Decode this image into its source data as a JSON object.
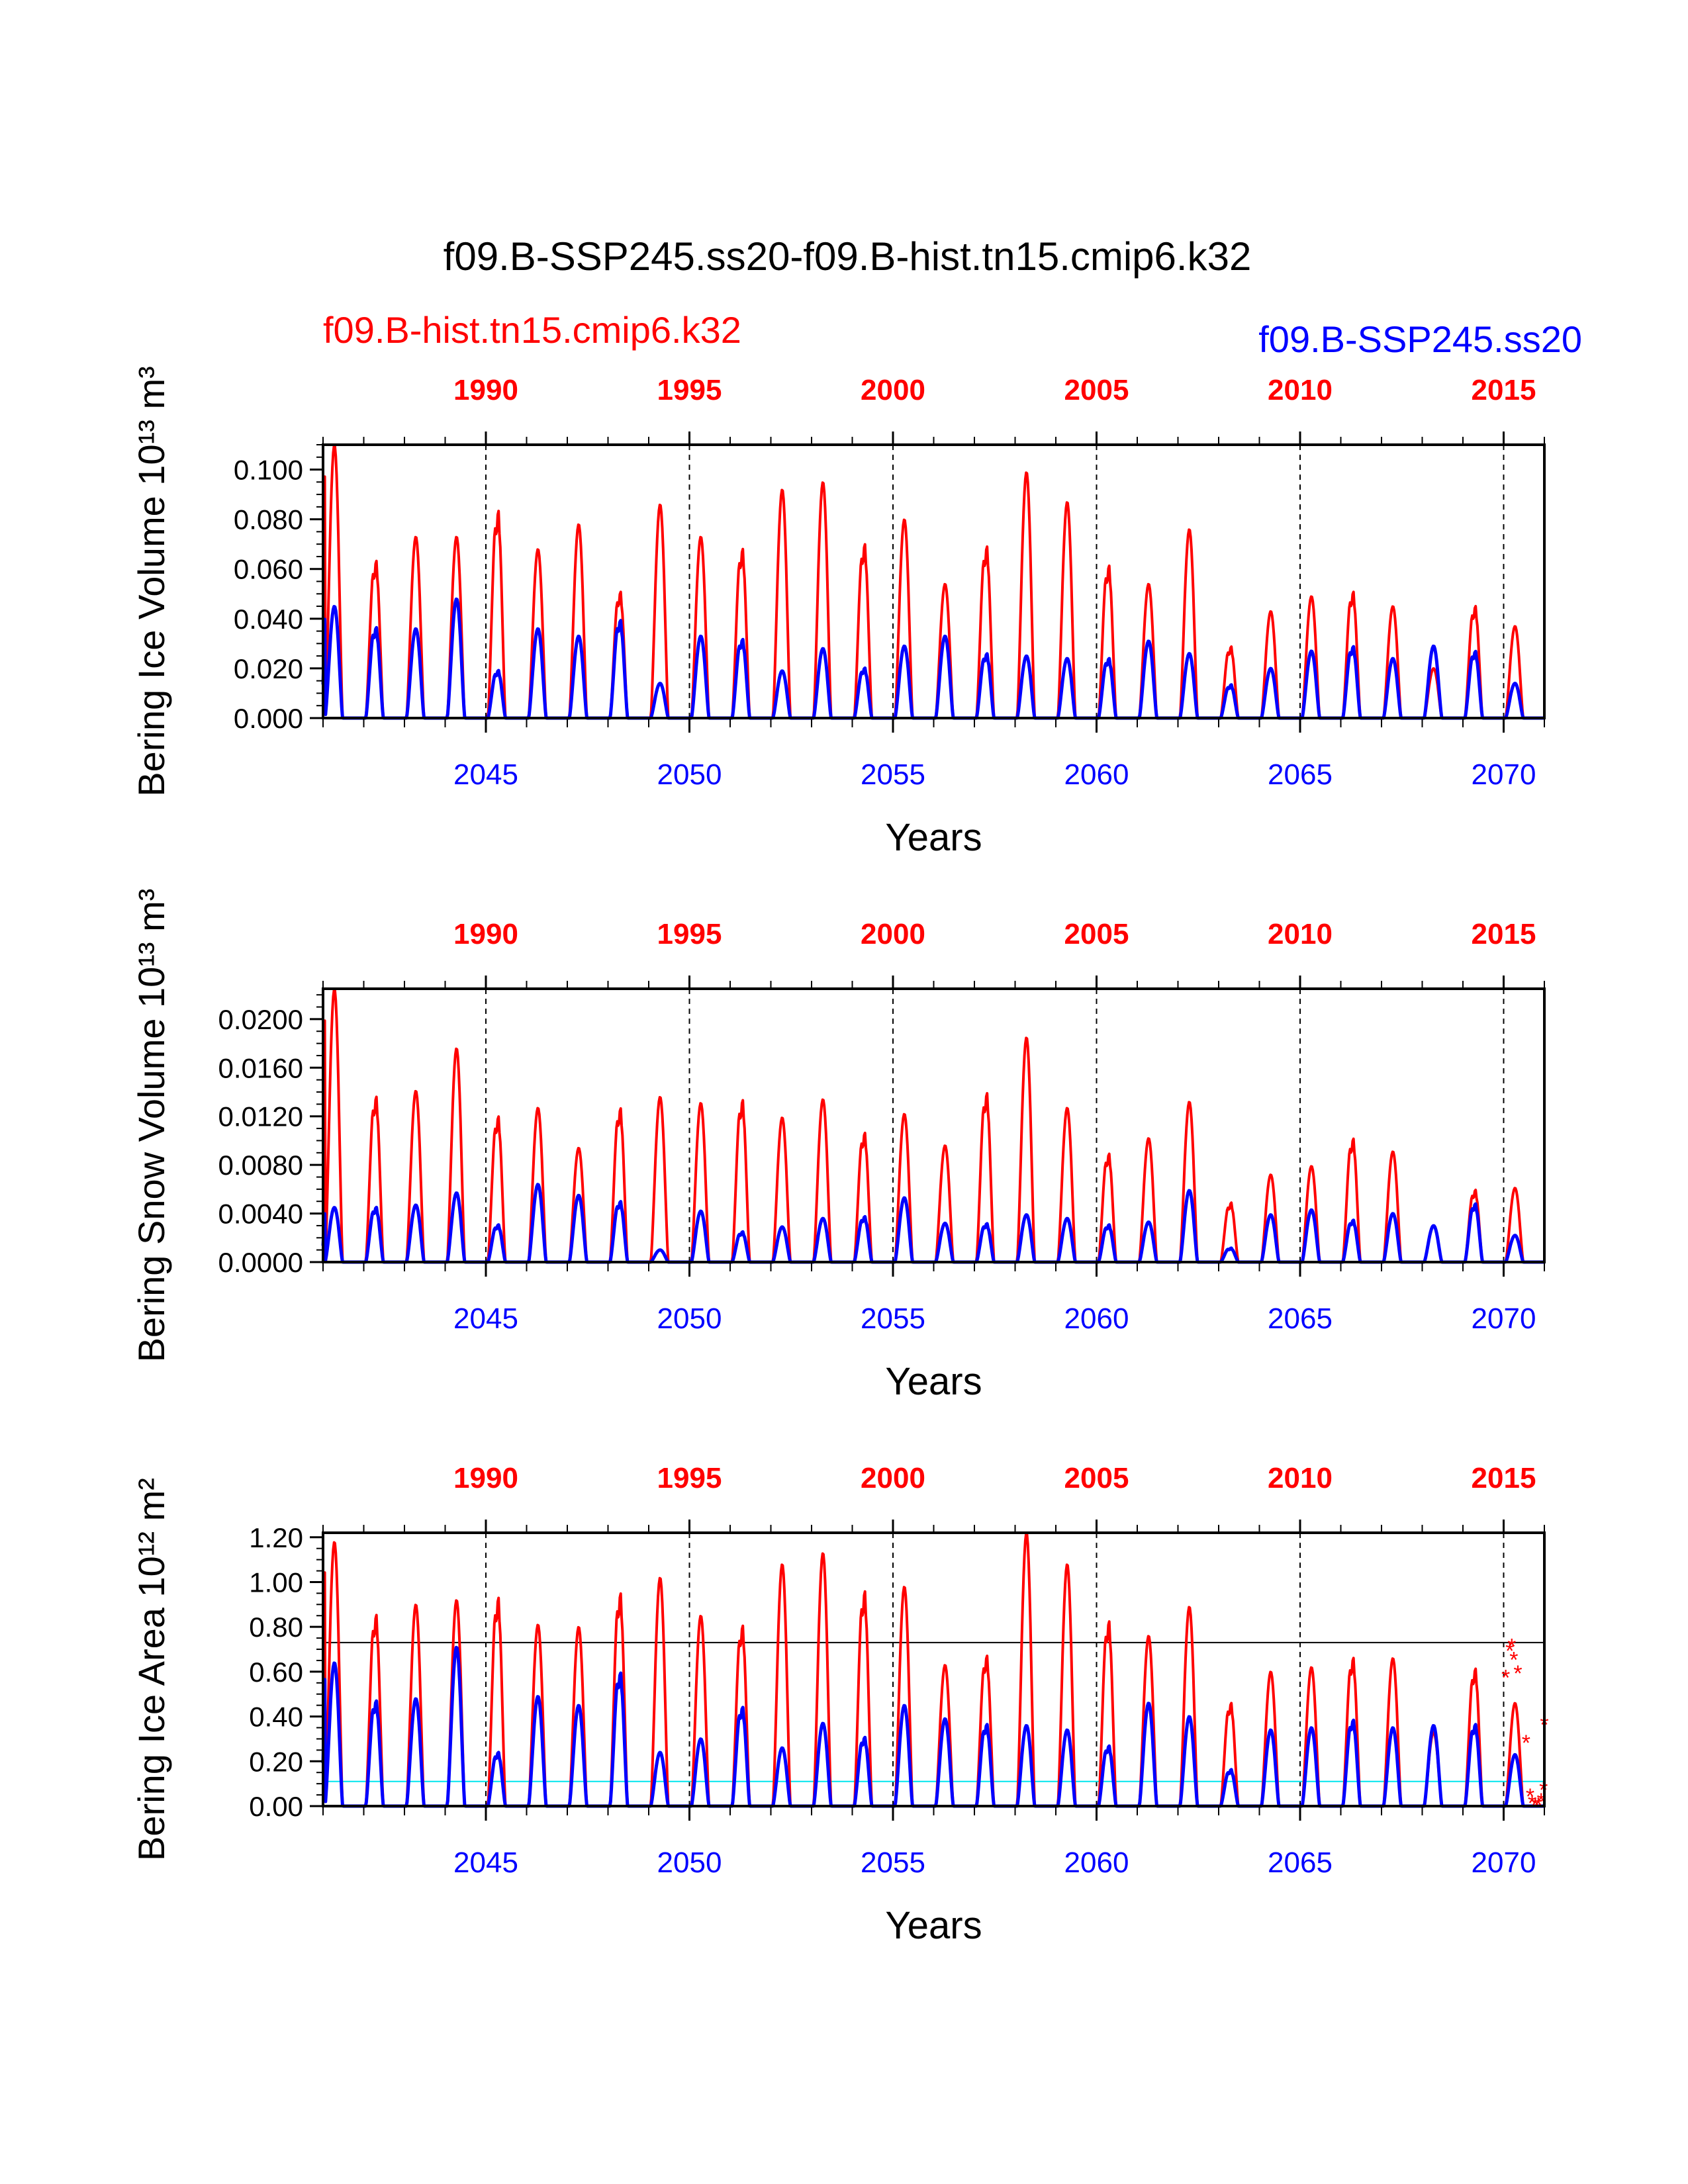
{
  "page": {
    "title": "f09.B-SSP245.ss20-f09.B-hist.tn15.cmip6.k32",
    "legend_left": "f09.B-hist.tn15.cmip6.k32",
    "legend_right": "f09.B-SSP245.ss20",
    "colors": {
      "hist": "#ff0000",
      "ssp": "#0000ff",
      "axis": "#000000",
      "cyan": "#00e5ee"
    }
  },
  "chart_data": [
    {
      "type": "line",
      "ylabel": "Bering Ice Volume 10¹³ m³",
      "xlabel": "Years",
      "ylim": [
        0,
        0.11
      ],
      "yticks": [
        0.0,
        0.02,
        0.04,
        0.06,
        0.08,
        0.1
      ],
      "ytick_labels": [
        "0.000",
        "0.020",
        "0.040",
        "0.060",
        "0.080",
        "0.100"
      ],
      "x_bottom_range": [
        2041,
        2071
      ],
      "x_bottom_ticks": [
        2045,
        2050,
        2055,
        2060,
        2065,
        2070
      ],
      "x_top_range": [
        1986,
        2016
      ],
      "x_top_ticks": [
        1990,
        1995,
        2000,
        2005,
        2010,
        2015
      ],
      "vlines_x": [
        2045,
        2050,
        2055,
        2060,
        2065,
        2070
      ],
      "series": [
        {
          "name": "f09.B-hist.tn15.cmip6.k32",
          "x_years": [
            2041,
            2042,
            2043,
            2044,
            2045,
            2046,
            2047,
            2048,
            2049,
            2050,
            2051,
            2052,
            2053,
            2054,
            2055,
            2056,
            2057,
            2058,
            2059,
            2060,
            2061,
            2062,
            2063,
            2064,
            2065,
            2066,
            2067,
            2068,
            2069,
            2070
          ],
          "peaks": [
            0.11,
            0.066,
            0.073,
            0.073,
            0.087,
            0.068,
            0.078,
            0.053,
            0.086,
            0.073,
            0.071,
            0.092,
            0.095,
            0.073,
            0.08,
            0.054,
            0.072,
            0.099,
            0.087,
            0.064,
            0.054,
            0.076,
            0.03,
            0.043,
            0.049,
            0.053,
            0.045,
            0.02,
            0.047,
            0.037
          ]
        },
        {
          "name": "f09.B-SSP245.ss20",
          "x_years": [
            2041,
            2042,
            2043,
            2044,
            2045,
            2046,
            2047,
            2048,
            2049,
            2050,
            2051,
            2052,
            2053,
            2054,
            2055,
            2056,
            2057,
            2058,
            2059,
            2060,
            2061,
            2062,
            2063,
            2064,
            2065,
            2066,
            2067,
            2068,
            2069,
            2070
          ],
          "peaks": [
            0.045,
            0.038,
            0.036,
            0.048,
            0.02,
            0.036,
            0.033,
            0.041,
            0.014,
            0.033,
            0.033,
            0.019,
            0.028,
            0.021,
            0.029,
            0.033,
            0.027,
            0.025,
            0.024,
            0.025,
            0.031,
            0.026,
            0.014,
            0.02,
            0.027,
            0.03,
            0.024,
            0.029,
            0.028,
            0.014
          ]
        }
      ]
    },
    {
      "type": "line",
      "ylabel": "Bering Snow Volume 10¹³ m³",
      "xlabel": "Years",
      "ylim": [
        0,
        0.0225
      ],
      "yticks": [
        0.0,
        0.004,
        0.008,
        0.012,
        0.016,
        0.02
      ],
      "ytick_labels": [
        "0.0000",
        "0.0040",
        "0.0080",
        "0.0120",
        "0.0160",
        "0.0200"
      ],
      "x_bottom_range": [
        2041,
        2071
      ],
      "x_bottom_ticks": [
        2045,
        2050,
        2055,
        2060,
        2065,
        2070
      ],
      "x_top_range": [
        1986,
        2016
      ],
      "x_top_ticks": [
        1990,
        1995,
        2000,
        2005,
        2010,
        2015
      ],
      "vlines_x": [
        2045,
        2050,
        2055,
        2060,
        2065,
        2070
      ],
      "series": [
        {
          "name": "f09.B-hist.tn15.cmip6.k32",
          "x_years": [
            2041,
            2042,
            2043,
            2044,
            2045,
            2046,
            2047,
            2048,
            2049,
            2050,
            2051,
            2052,
            2053,
            2054,
            2055,
            2056,
            2057,
            2058,
            2059,
            2060,
            2061,
            2062,
            2063,
            2064,
            2065,
            2066,
            2067,
            2068,
            2069,
            2070
          ],
          "peaks": [
            0.0225,
            0.0142,
            0.0141,
            0.0176,
            0.0125,
            0.0127,
            0.0094,
            0.0132,
            0.0136,
            0.0131,
            0.0139,
            0.0119,
            0.0134,
            0.0111,
            0.0122,
            0.0096,
            0.0145,
            0.0185,
            0.0127,
            0.0093,
            0.0102,
            0.0132,
            0.0051,
            0.0072,
            0.0079,
            0.0106,
            0.0091,
            0.003,
            0.0062,
            0.0061
          ]
        },
        {
          "name": "f09.B-SSP245.ss20",
          "x_years": [
            2041,
            2042,
            2043,
            2044,
            2045,
            2046,
            2047,
            2048,
            2049,
            2050,
            2051,
            2052,
            2053,
            2054,
            2055,
            2056,
            2057,
            2058,
            2059,
            2060,
            2061,
            2062,
            2063,
            2064,
            2065,
            2066,
            2067,
            2068,
            2069,
            2070
          ],
          "peaks": [
            0.0045,
            0.0047,
            0.0047,
            0.0057,
            0.0032,
            0.0064,
            0.0055,
            0.0052,
            0.001,
            0.0042,
            0.0026,
            0.0029,
            0.0036,
            0.0039,
            0.0053,
            0.0032,
            0.0033,
            0.0039,
            0.0036,
            0.0032,
            0.0033,
            0.0059,
            0.0012,
            0.0039,
            0.0043,
            0.0036,
            0.004,
            0.003,
            0.005,
            0.0022
          ]
        }
      ]
    },
    {
      "type": "line",
      "ylabel": "Bering Ice Area 10¹² m²",
      "xlabel": "Years",
      "ylim": [
        0,
        1.22
      ],
      "yticks": [
        0.0,
        0.2,
        0.4,
        0.6,
        0.8,
        1.0,
        1.2
      ],
      "ytick_labels": [
        "0.00",
        "0.20",
        "0.40",
        "0.60",
        "0.80",
        "1.00",
        "1.20"
      ],
      "x_bottom_range": [
        2041,
        2071
      ],
      "x_bottom_ticks": [
        2045,
        2050,
        2055,
        2060,
        2065,
        2070
      ],
      "x_top_range": [
        1986,
        2016
      ],
      "x_top_ticks": [
        1990,
        1995,
        2000,
        2005,
        2010,
        2015
      ],
      "vlines_x": [
        2045,
        2050,
        2055,
        2060,
        2065,
        2070
      ],
      "hline_black_y": 0.73,
      "hline_cyan_y": 0.11,
      "series": [
        {
          "name": "f09.B-hist.tn15.cmip6.k32",
          "x_years": [
            2041,
            2042,
            2043,
            2044,
            2045,
            2046,
            2047,
            2048,
            2049,
            2050,
            2051,
            2052,
            2053,
            2054,
            2055,
            2056,
            2057,
            2058,
            2059,
            2060,
            2061,
            2062,
            2063,
            2064,
            2065,
            2066,
            2067,
            2068,
            2069,
            2070
          ],
          "peaks": [
            1.18,
            0.89,
            0.9,
            0.92,
            0.97,
            0.81,
            0.8,
            0.99,
            1.02,
            0.85,
            0.84,
            1.08,
            1.13,
            1.0,
            0.98,
            0.63,
            0.7,
            1.22,
            1.08,
            0.86,
            0.76,
            0.89,
            0.48,
            0.6,
            0.62,
            0.69,
            0.66,
            0.33,
            0.64,
            0.46
          ]
        },
        {
          "name": "f09.B-SSP245.ss20",
          "x_years": [
            2041,
            2042,
            2043,
            2044,
            2045,
            2046,
            2047,
            2048,
            2049,
            2050,
            2051,
            2052,
            2053,
            2054,
            2055,
            2056,
            2057,
            2058,
            2059,
            2060,
            2061,
            2062,
            2063,
            2064,
            2065,
            2066,
            2067,
            2068,
            2069,
            2070
          ],
          "peaks": [
            0.64,
            0.49,
            0.48,
            0.71,
            0.25,
            0.49,
            0.45,
            0.62,
            0.24,
            0.3,
            0.46,
            0.26,
            0.37,
            0.32,
            0.45,
            0.39,
            0.38,
            0.36,
            0.34,
            0.28,
            0.46,
            0.4,
            0.17,
            0.34,
            0.35,
            0.4,
            0.35,
            0.36,
            0.38,
            0.23
          ]
        }
      ],
      "markers": {
        "symbol": "*",
        "x_years": [
          2070.05,
          2070.15,
          2070.2,
          2070.25,
          2070.35,
          2070.55,
          2070.65,
          2070.7,
          2070.78,
          2070.85,
          2070.92,
          2070.98,
          2071.0
        ],
        "values": [
          0.58,
          0.7,
          0.72,
          0.66,
          0.6,
          0.29,
          0.05,
          0.02,
          0.01,
          0.01,
          0.03,
          0.08,
          0.37
        ]
      }
    }
  ]
}
